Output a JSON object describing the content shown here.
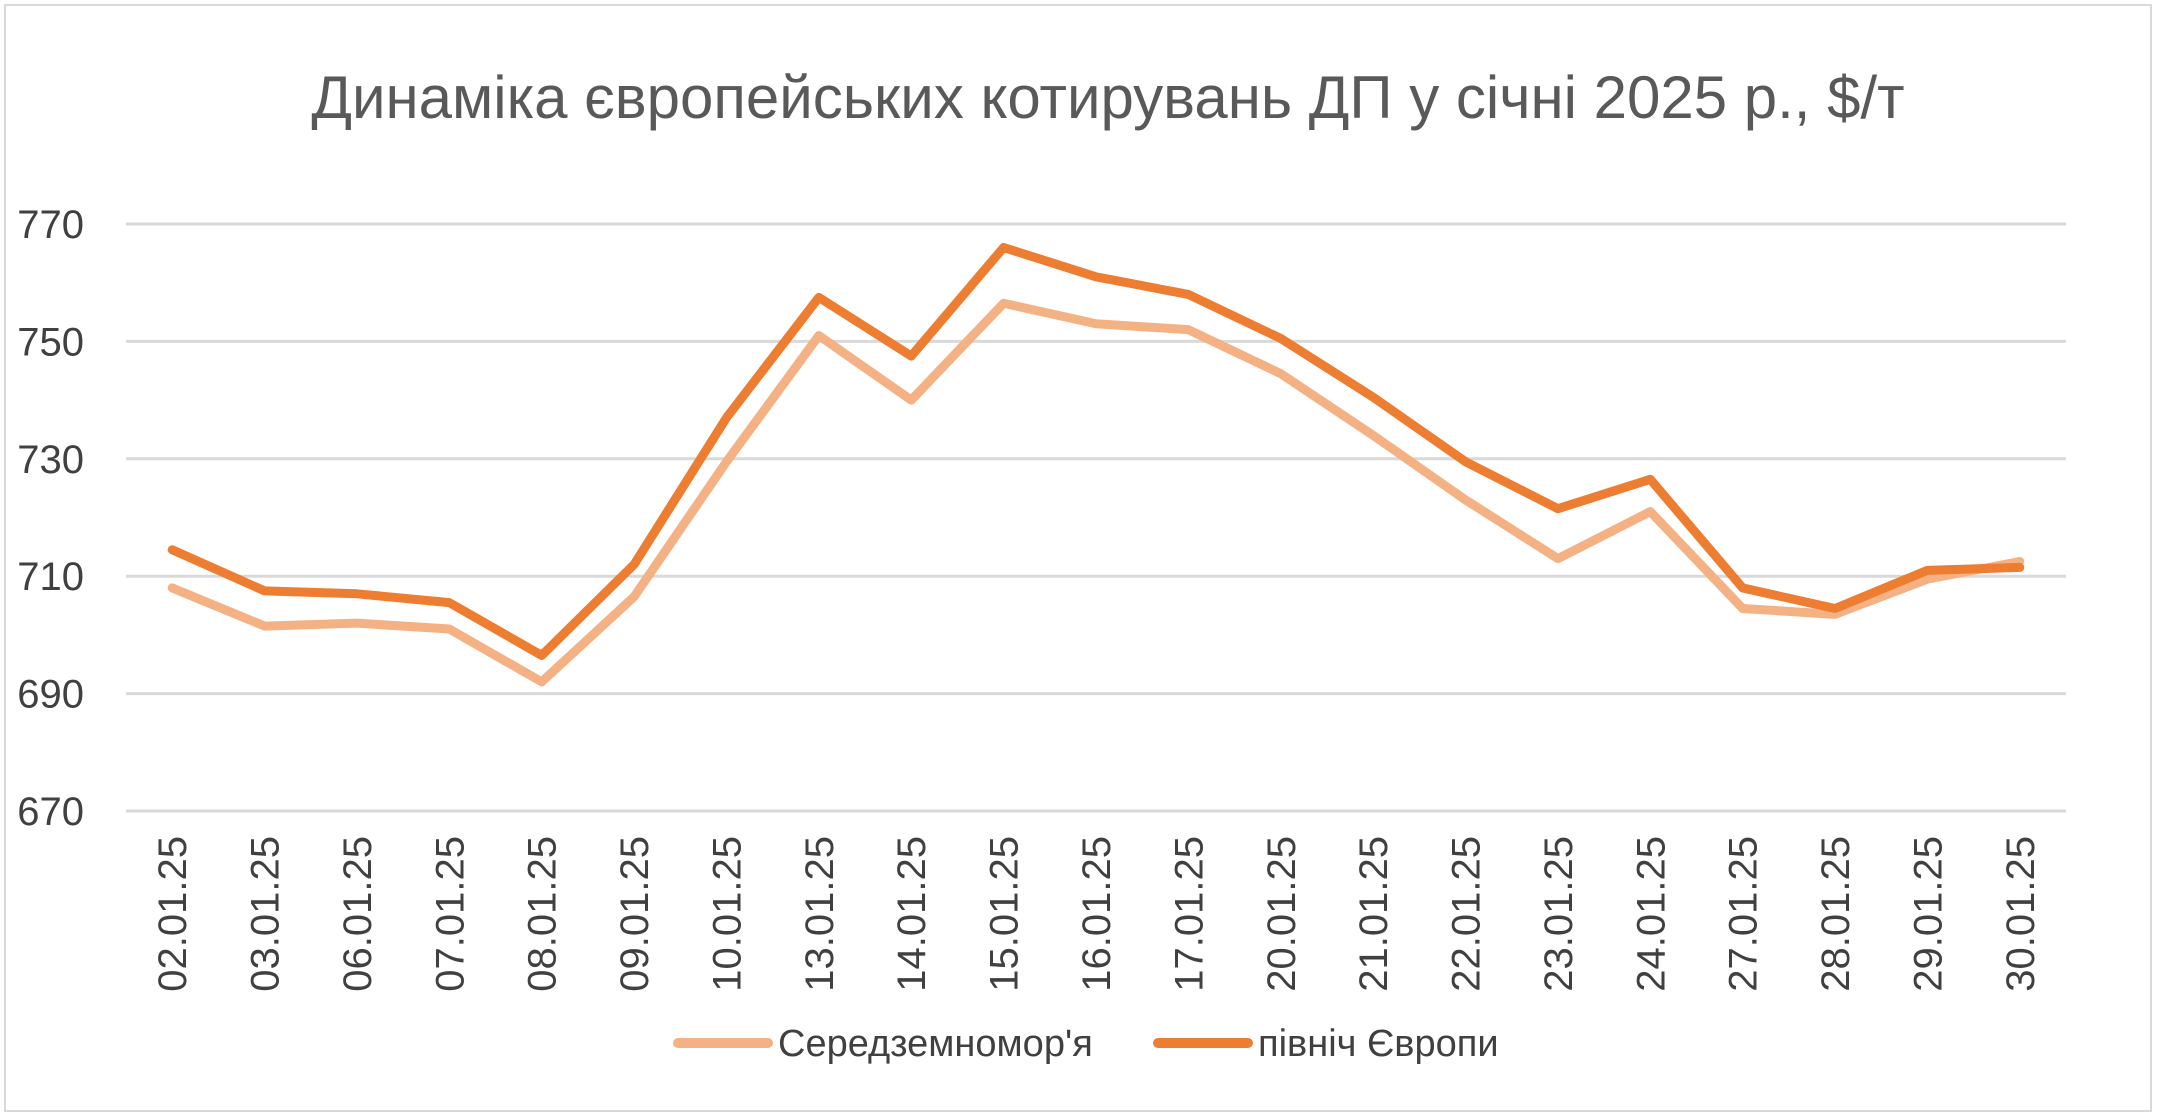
{
  "chart_data": {
    "type": "line",
    "title": "Динаміка європейських котирувань ДП у січні 2025 р., $/т",
    "xlabel": "",
    "ylabel": "",
    "categories": [
      "02.01.25",
      "03.01.25",
      "06.01.25",
      "07.01.25",
      "08.01.25",
      "09.01.25",
      "10.01.25",
      "13.01.25",
      "14.01.25",
      "15.01.25",
      "16.01.25",
      "17.01.25",
      "20.01.25",
      "21.01.25",
      "22.01.25",
      "23.01.25",
      "24.01.25",
      "27.01.25",
      "28.01.25",
      "29.01.25",
      "30.01.25"
    ],
    "y_ticks": [
      "670",
      "690",
      "710",
      "730",
      "750",
      "770"
    ],
    "ylim": [
      670,
      770
    ],
    "grid": true,
    "legend_position": "bottom",
    "series": [
      {
        "name": "Середземномор'я",
        "color": "#F4B183",
        "values": [
          708,
          701.5,
          702,
          701,
          692,
          706.5,
          729.5,
          751,
          740,
          756.5,
          753,
          752,
          744.5,
          734,
          723,
          713,
          721,
          704.5,
          703.5,
          709.5,
          712.5
        ]
      },
      {
        "name": "північ Європи",
        "color": "#ED7D31",
        "values": [
          714.5,
          707.5,
          707,
          705.5,
          696.5,
          712,
          737,
          757.5,
          747.5,
          766,
          761,
          758,
          750.5,
          740.5,
          729.5,
          721.5,
          726.5,
          708,
          704.5,
          711,
          711.5
        ]
      }
    ]
  }
}
